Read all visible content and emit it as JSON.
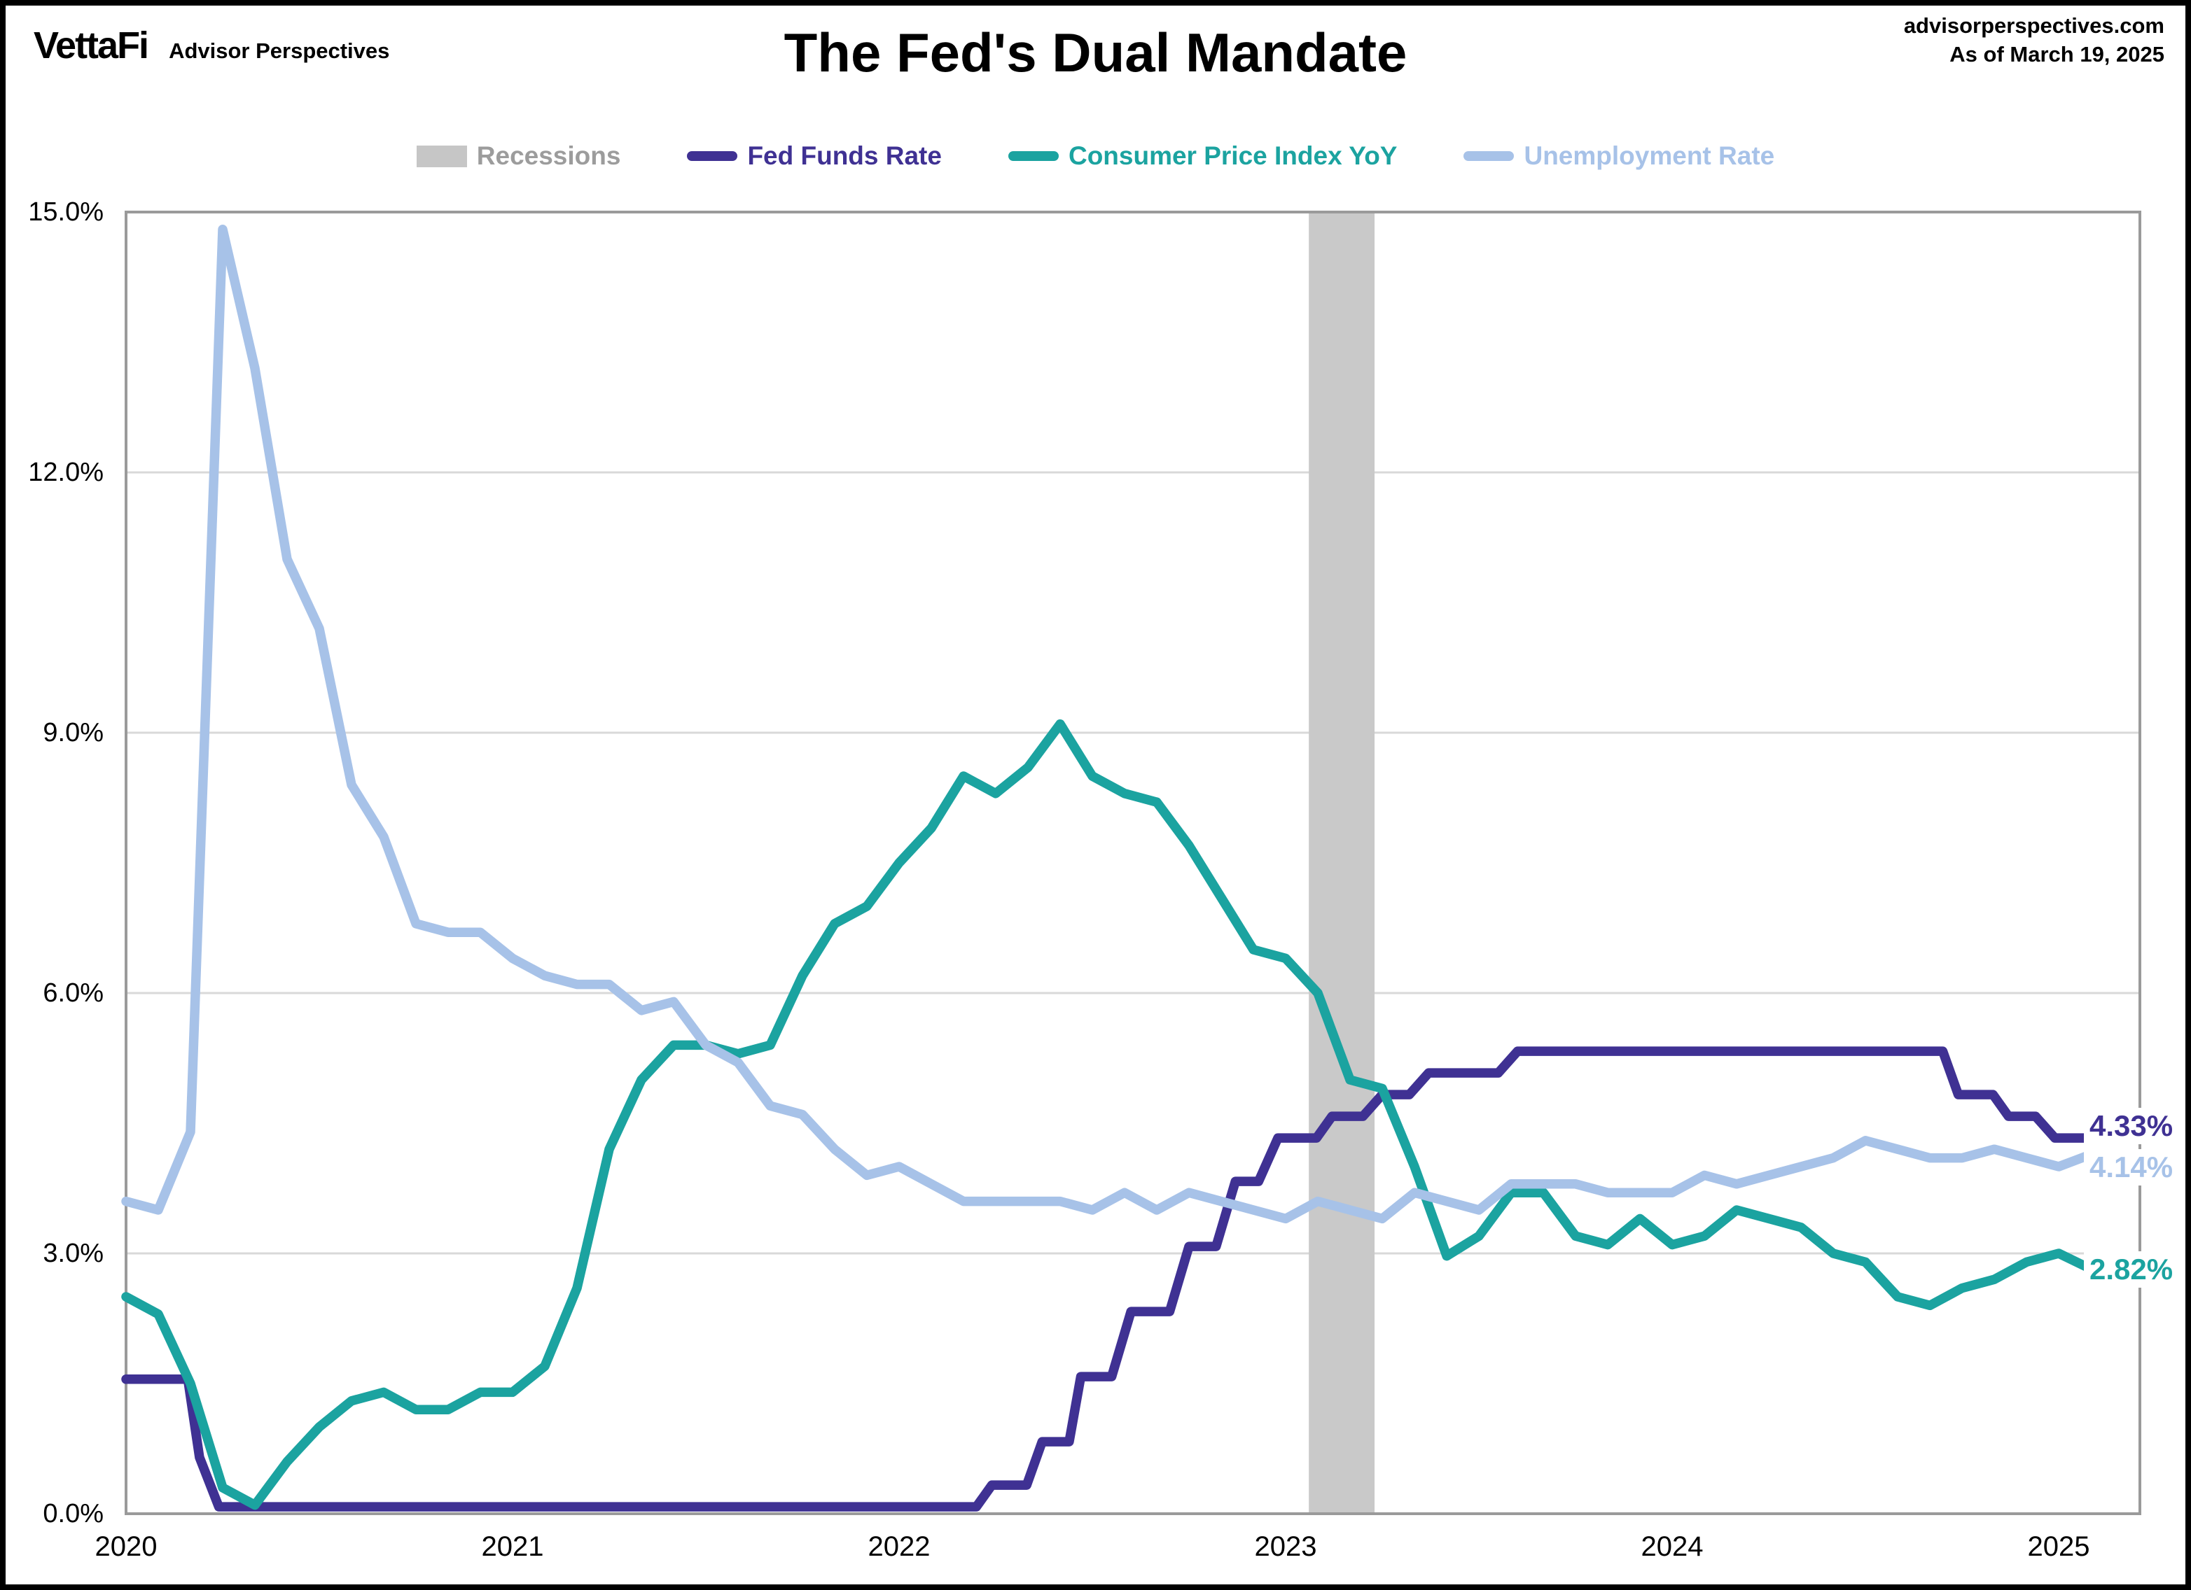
{
  "header": {
    "logo_text": "VettaFi",
    "logo_sub": "Advisor Perspectives",
    "title": "The Fed's Dual Mandate",
    "source": "advisorperspectives.com",
    "as_of": "As of March 19, 2025"
  },
  "legend": [
    {
      "label": "Recessions",
      "color": "#9c9c9c",
      "swatch": "#c6c6c6",
      "type": "box"
    },
    {
      "label": "Fed Funds Rate",
      "color": "#3f3193",
      "swatch": "#3f3193",
      "type": "line"
    },
    {
      "label": "Consumer Price Index YoY",
      "color": "#1ba3a0",
      "swatch": "#1ba3a0",
      "type": "line"
    },
    {
      "label": "Unemployment Rate",
      "color": "#a7c2e8",
      "swatch": "#a7c2e8",
      "type": "line"
    }
  ],
  "chart_data": {
    "type": "line",
    "title": "The Fed's Dual Mandate",
    "xlabel": "",
    "ylabel": "",
    "xlim": [
      2020,
      2025.21
    ],
    "ylim": [
      0,
      15
    ],
    "grid": true,
    "legend_position": "top",
    "colors": {
      "gridline": "#d9d9d9",
      "axis": "#9a9a9a",
      "recession_band": "#c9c9c9"
    },
    "y_gridlines": [
      3,
      6,
      9,
      12
    ],
    "y_ticks": [
      {
        "value": 15,
        "label": "15.0%"
      },
      {
        "value": 12,
        "label": "12.0%"
      },
      {
        "value": 9,
        "label": "9.0%"
      },
      {
        "value": 6,
        "label": "6.0%"
      },
      {
        "value": 3,
        "label": "3.0%"
      },
      {
        "value": 0,
        "label": "0.0%"
      }
    ],
    "x_ticks": [
      {
        "value": 2020,
        "label": "2020"
      },
      {
        "value": 2021,
        "label": "2021"
      },
      {
        "value": 2022,
        "label": "2022"
      },
      {
        "value": 2023,
        "label": "2023"
      },
      {
        "value": 2024,
        "label": "2024"
      },
      {
        "value": 2025,
        "label": "2025"
      }
    ],
    "recession_bands": [
      {
        "from": 2023.06,
        "to": 2023.23
      }
    ],
    "series": [
      {
        "id": "fed-funds",
        "name": "Fed Funds Rate",
        "color": "#3f3193",
        "end_label": "4.33%",
        "points": [
          [
            2020.0,
            1.55
          ],
          [
            2020.16,
            1.55
          ],
          [
            2020.19,
            0.65
          ],
          [
            2020.24,
            0.08
          ],
          [
            2022.2,
            0.08
          ],
          [
            2022.24,
            0.33
          ],
          [
            2022.33,
            0.33
          ],
          [
            2022.37,
            0.83
          ],
          [
            2022.44,
            0.83
          ],
          [
            2022.47,
            1.58
          ],
          [
            2022.55,
            1.58
          ],
          [
            2022.6,
            2.33
          ],
          [
            2022.7,
            2.33
          ],
          [
            2022.75,
            3.08
          ],
          [
            2022.82,
            3.08
          ],
          [
            2022.87,
            3.83
          ],
          [
            2022.93,
            3.83
          ],
          [
            2022.98,
            4.33
          ],
          [
            2023.08,
            4.33
          ],
          [
            2023.12,
            4.58
          ],
          [
            2023.2,
            4.58
          ],
          [
            2023.25,
            4.83
          ],
          [
            2023.32,
            4.83
          ],
          [
            2023.37,
            5.08
          ],
          [
            2023.55,
            5.08
          ],
          [
            2023.6,
            5.33
          ],
          [
            2024.7,
            5.33
          ],
          [
            2024.74,
            4.83
          ],
          [
            2024.83,
            4.83
          ],
          [
            2024.87,
            4.58
          ],
          [
            2024.94,
            4.58
          ],
          [
            2024.99,
            4.33
          ],
          [
            2025.09,
            4.33
          ]
        ]
      },
      {
        "id": "cpi-yoy",
        "name": "Consumer Price Index YoY",
        "color": "#1ba3a0",
        "end_label": "2.82%",
        "start": 2020.0,
        "values": [
          2.5,
          2.3,
          1.5,
          0.3,
          0.1,
          0.6,
          1.0,
          1.3,
          1.4,
          1.2,
          1.2,
          1.4,
          1.4,
          1.7,
          2.6,
          4.2,
          5.0,
          5.4,
          5.4,
          5.3,
          5.4,
          6.2,
          6.8,
          7.0,
          7.5,
          7.9,
          8.5,
          8.3,
          8.6,
          9.1,
          8.5,
          8.3,
          8.2,
          7.7,
          7.1,
          6.5,
          6.4,
          6.0,
          5.0,
          4.9,
          4.0,
          2.97,
          3.2,
          3.7,
          3.7,
          3.2,
          3.1,
          3.4,
          3.1,
          3.2,
          3.5,
          3.4,
          3.3,
          3.0,
          2.9,
          2.5,
          2.4,
          2.6,
          2.7,
          2.9,
          3.0,
          2.82
        ]
      },
      {
        "id": "unemployment",
        "name": "Unemployment Rate",
        "color": "#a7c2e8",
        "end_label": "4.14%",
        "start": 2020.0,
        "values": [
          3.6,
          3.5,
          4.4,
          14.8,
          13.2,
          11.0,
          10.2,
          8.4,
          7.8,
          6.8,
          6.7,
          6.7,
          6.4,
          6.2,
          6.1,
          6.1,
          5.8,
          5.9,
          5.4,
          5.2,
          4.7,
          4.6,
          4.2,
          3.9,
          4.0,
          3.8,
          3.6,
          3.6,
          3.6,
          3.6,
          3.5,
          3.7,
          3.5,
          3.7,
          3.6,
          3.5,
          3.4,
          3.6,
          3.5,
          3.4,
          3.7,
          3.6,
          3.5,
          3.8,
          3.8,
          3.8,
          3.7,
          3.7,
          3.7,
          3.9,
          3.8,
          3.9,
          4.0,
          4.1,
          4.3,
          4.2,
          4.1,
          4.1,
          4.2,
          4.1,
          4.0,
          4.14
        ]
      }
    ]
  }
}
